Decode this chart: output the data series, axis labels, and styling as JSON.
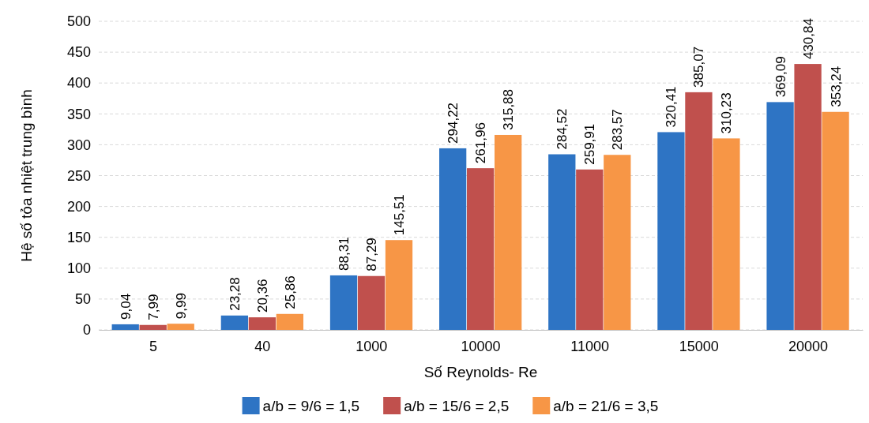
{
  "chart_data": {
    "type": "bar",
    "xlabel": "Số Reynolds- Re",
    "ylabel": "Hệ số tỏa nhiệt trung bình",
    "categories": [
      "5",
      "40",
      "1000",
      "10000",
      "11000",
      "15000",
      "20000"
    ],
    "series": [
      {
        "name": "a/b = 9/6 = 1,5",
        "color": "#2e74c4",
        "values": [
          9.04,
          23.28,
          88.31,
          294.22,
          284.52,
          320.41,
          369.09
        ],
        "value_labels": [
          "9,04",
          "23,28",
          "88,31",
          "294,22",
          "284,52",
          "320,41",
          "369,09"
        ]
      },
      {
        "name": "a/b = 15/6 = 2,5",
        "color": "#c0504d",
        "values": [
          7.99,
          20.36,
          87.29,
          261.96,
          259.91,
          385.07,
          430.84
        ],
        "value_labels": [
          "7,99",
          "20,36",
          "87,29",
          "261,96",
          "259,91",
          "385,07",
          "430,84"
        ]
      },
      {
        "name": "a/b = 21/6 = 3,5",
        "color": "#f79646",
        "values": [
          9.99,
          25.86,
          145.51,
          315.88,
          283.57,
          310.23,
          353.24
        ],
        "value_labels": [
          "9,99",
          "25,86",
          "145,51",
          "315,88",
          "283,57",
          "310,23",
          "353,24"
        ]
      }
    ],
    "ylim": [
      0,
      500
    ],
    "yticks": [
      0,
      50,
      100,
      150,
      200,
      250,
      300,
      350,
      400,
      450,
      500
    ],
    "grid": "y",
    "legend": "bottom"
  }
}
